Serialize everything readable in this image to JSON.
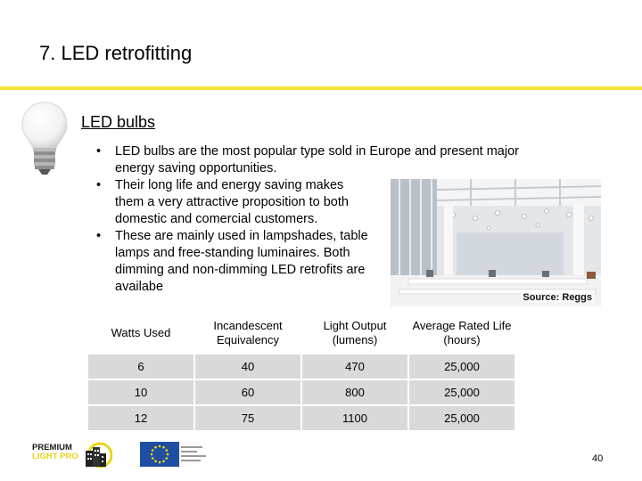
{
  "slide": {
    "title": "7. LED retrofitting",
    "section_heading": "LED bulbs",
    "bullets": [
      "LED bulbs are the most popular type sold in Europe and present major energy saving opportunities.",
      "Their long life and energy saving makes them a very attractive proposition to both domestic and comercial customers.",
      "These are mainly used in lampshades, table lamps and free-standing luminaires. Both dimming and non-dimming LED retrofits are availabe"
    ],
    "image_caption": "Source: Reggs",
    "page_number": "40"
  },
  "table": {
    "headers": [
      "Watts Used",
      "Incandescent Equivalency",
      "Light Output (lumens)",
      "Average Rated Life (hours)"
    ],
    "rows": [
      [
        "6",
        "40",
        "470",
        "25,000"
      ],
      [
        "10",
        "60",
        "800",
        "25,000"
      ],
      [
        "12",
        "75",
        "1100",
        "25,000"
      ]
    ]
  },
  "footer": {
    "logo_lines": [
      "PREMIUM",
      "LIGHT PRO"
    ]
  },
  "colors": {
    "accent_rule": "#f2e63a",
    "table_cell": "#d9d9d9",
    "eu_blue": "#1f4ea3",
    "eu_star": "#ffdd00"
  },
  "icons": [
    "led-bulb-icon",
    "eu-flag-icon",
    "premium-light-pro-logo"
  ]
}
